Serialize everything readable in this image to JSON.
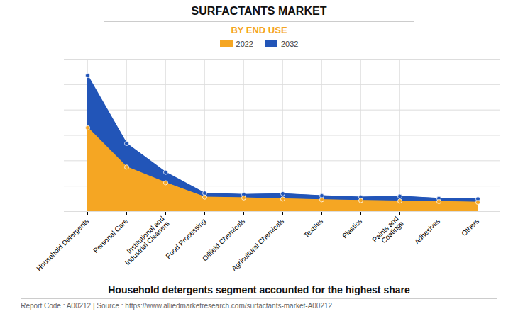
{
  "chart_data": {
    "type": "area",
    "title": "SURFACTANTS MARKET",
    "subtitle": "BY END USE",
    "subtitle_color": "#F5A623",
    "categories": [
      "Household Detergents",
      "Personal Care",
      "Institutional and\nIndustrial Cleaners",
      "Food Processing",
      "Oilfield Chemicals",
      "Agricultural Chemicals",
      "Textiles",
      "Plastics",
      "Paints and\nCoatings",
      "Adhesives",
      "Others"
    ],
    "series": [
      {
        "name": "2022",
        "color": "#F5A623",
        "values": [
          32,
          17,
          11,
          5.5,
          5.2,
          4.8,
          4.5,
          4.2,
          4.0,
          3.8,
          3.5
        ]
      },
      {
        "name": "2032",
        "color": "#2255B8",
        "values": [
          52,
          26,
          15,
          7.0,
          6.5,
          6.8,
          6.0,
          5.5,
          5.8,
          5.0,
          4.8
        ]
      }
    ],
    "ylim": [
      0,
      58.24
    ],
    "yticks": [
      0,
      9.706666666666667,
      19.413333333333334,
      29.12,
      38.82666666666667,
      48.53333333333333,
      58.24
    ],
    "grid": true,
    "tick_labels": "x",
    "marker": "o",
    "annotations": [
      "Household detergents segment accounted for the highest share",
      "Report Code : A00212  |  Source : https://www.alliedmarketresearch.com/surfactants-market-A00212"
    ]
  }
}
